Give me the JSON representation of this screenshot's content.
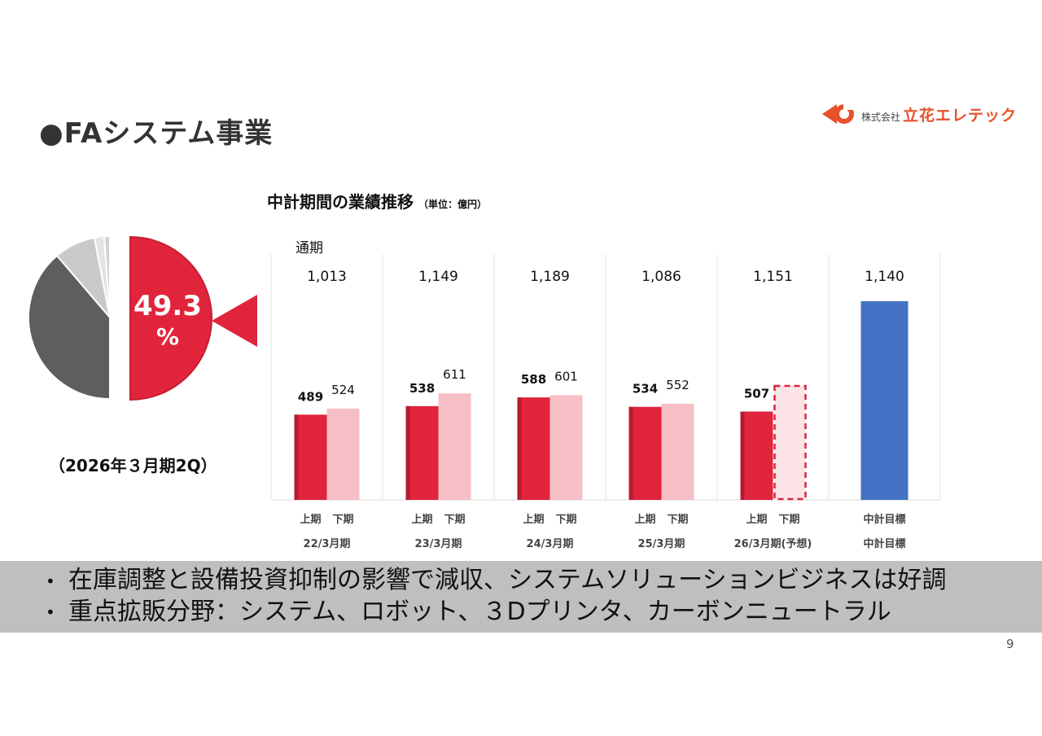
{
  "title": "●FAシステム事業",
  "logo": {
    "prefix": "株式会社",
    "name": "立花エレテック"
  },
  "chart_title": "中計期間の業績推移",
  "chart_unit": "（単位：億円）",
  "pie": {
    "percent": "49.3",
    "percent_unit": "%",
    "label": "（2026年３月期2Q）",
    "colors": {
      "highlight": "#e0243c",
      "dark": "#5f5d5e",
      "light1": "#c9c9c9",
      "light2": "#e3e3e3",
      "light3": "#d0d0d0"
    }
  },
  "colors": {
    "h1": "#e0243c",
    "h2": "#f6bfc6",
    "target": "#4472c4"
  },
  "chart_data": {
    "type": "bar",
    "series_label": "通期",
    "categories": [
      "22/3月期",
      "23/3月期",
      "24/3月期",
      "25/3月期",
      "26/3月期(予想)",
      "中計目標"
    ],
    "half_labels": [
      "上期",
      "下期"
    ],
    "totals": [
      "1,013",
      "1,149",
      "1,189",
      "1,086",
      "1,151",
      "1,140"
    ],
    "series": [
      {
        "name": "上期",
        "values": [
          489,
          538,
          588,
          534,
          507,
          null
        ]
      },
      {
        "name": "下期",
        "values": [
          524,
          611,
          601,
          552,
          null,
          null
        ]
      },
      {
        "name": "中計目標",
        "values": [
          null,
          null,
          null,
          null,
          null,
          1140
        ]
      }
    ],
    "forecast_second_half": true,
    "ylim": [
      0,
      1300
    ]
  },
  "bullets": [
    "在庫調整と設備投資抑制の影響で減収、システムソリューションビジネスは好調",
    "重点拡販分野：システム、ロボット、３Dプリンタ、カーボンニュートラル"
  ],
  "bullet_glyph": "•",
  "page_number": "9"
}
